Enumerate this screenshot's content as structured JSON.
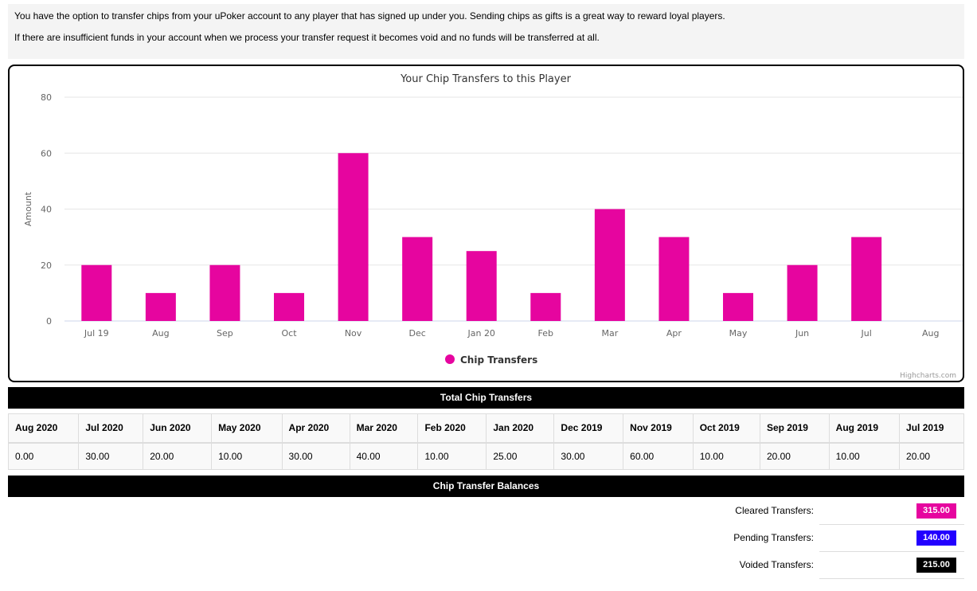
{
  "intro": {
    "line1": "You have the option to transfer chips from your uPoker account to any player that has signed up under you. Sending chips as gifts is a great way to reward loyal players.",
    "line2": "If there are insufficient funds in your account when we process your transfer request it becomes void and no funds will be transferred at all."
  },
  "chart_data": {
    "type": "bar",
    "title": "Your Chip Transfers to this Player",
    "ylabel": "Amount",
    "xlabel": "",
    "categories": [
      "Jul 19",
      "Aug",
      "Sep",
      "Oct",
      "Nov",
      "Dec",
      "Jan 20",
      "Feb",
      "Mar",
      "Apr",
      "May",
      "Jun",
      "Jul",
      "Aug"
    ],
    "series": [
      {
        "name": "Chip Transfers",
        "values": [
          20,
          10,
          20,
          10,
          60,
          30,
          25,
          10,
          40,
          30,
          10,
          20,
          30,
          0
        ],
        "color": "#e6059f"
      }
    ],
    "ylim": [
      0,
      80
    ],
    "yticks": [
      0,
      20,
      40,
      60,
      80
    ],
    "grid": true,
    "legend": "bottom-center",
    "credits": "Highcharts.com"
  },
  "totals": {
    "header": "Total Chip Transfers",
    "columns": [
      "Aug 2020",
      "Jul 2020",
      "Jun 2020",
      "May 2020",
      "Apr 2020",
      "Mar 2020",
      "Feb 2020",
      "Jan 2020",
      "Dec 2019",
      "Nov 2019",
      "Oct 2019",
      "Sep 2019",
      "Aug 2019",
      "Jul 2019"
    ],
    "values": [
      "0.00",
      "30.00",
      "20.00",
      "10.00",
      "30.00",
      "40.00",
      "10.00",
      "25.00",
      "30.00",
      "60.00",
      "10.00",
      "20.00",
      "10.00",
      "20.00"
    ]
  },
  "balances": {
    "header": "Chip Transfer Balances",
    "cleared_label": "Cleared Transfers:",
    "cleared_value": "315.00",
    "cleared_color": "#e6059f",
    "pending_label": "Pending Transfers:",
    "pending_value": "140.00",
    "pending_color": "#2200ff",
    "voided_label": "Voided Transfers:",
    "voided_value": "215.00",
    "voided_color": "#000000"
  }
}
